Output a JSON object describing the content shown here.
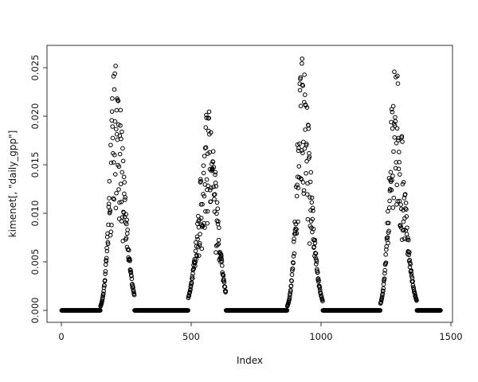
{
  "figure": {
    "background": "#ffffff",
    "axis_color": "#333333",
    "text_color": "#111111"
  },
  "chart_data": {
    "type": "scatter",
    "title": "",
    "xlabel": "Index",
    "ylabel": "kimenet[, \"daily_gpp\"]",
    "x_ticks": {
      "values": [
        0,
        500,
        1000,
        1500
      ],
      "labels": [
        "0",
        "500",
        "1000",
        "1500"
      ]
    },
    "y_ticks": {
      "values": [
        0,
        0.005,
        0.01,
        0.015,
        0.02,
        0.025
      ],
      "labels": [
        "0.000",
        "0.005",
        "0.010",
        "0.015",
        "0.020",
        "0.025"
      ]
    },
    "xlim": [
      -55.2,
      1506.1
    ],
    "ylim": [
      -0.00123,
      0.0273
    ],
    "n_points": 1460,
    "grid": false,
    "legend": null,
    "marker": {
      "shape": "open-circle",
      "color": "#000000",
      "radius_px": 2.3,
      "stroke_px": 1
    },
    "pattern": "Daily GPP time series over 4 years: value 0 outside the growing season, noisy bell-shaped peak each summer",
    "zero_value": 0,
    "seasons": [
      {
        "year": 1,
        "active_start": 135,
        "active_end": 281,
        "peak_index": 208,
        "peak_value": 0.0262,
        "sigma_left": 20,
        "sigma_right": 31
      },
      {
        "year": 2,
        "active_start": 489,
        "active_end": 633,
        "peak_index": 566,
        "peak_value": 0.0208,
        "sigma_left": 33,
        "sigma_right": 31
      },
      {
        "year": 3,
        "active_start": 864,
        "active_end": 1006,
        "peak_index": 927,
        "peak_value": 0.0261,
        "sigma_left": 20,
        "sigma_right": 31
      },
      {
        "year": 4,
        "active_start": 1229,
        "active_end": 1368,
        "peak_index": 1285,
        "peak_value": 0.0251,
        "sigma_left": 21,
        "sigma_right": 33
      }
    ],
    "noise": {
      "max_rel_spread": 0.6,
      "shape": 1.3,
      "seed": 42,
      "min_value_cutoff": 0.0004
    }
  }
}
